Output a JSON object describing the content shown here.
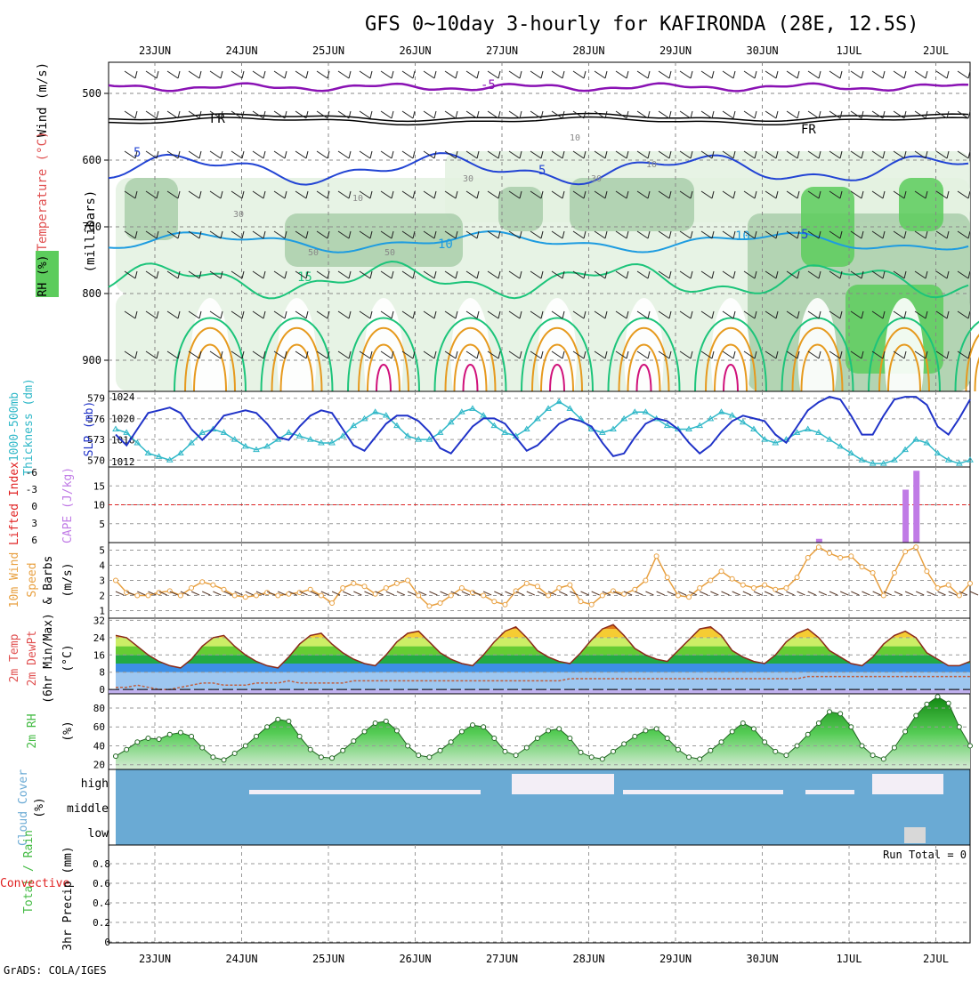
{
  "title": "GFS 0~10day 3-hourly for KAFIRONDA (28E, 12.5S)",
  "credit": "GrADS: COLA/IGES",
  "dates": [
    "23JUN",
    "24JUN",
    "25JUN",
    "26JUN",
    "27JUN",
    "28JUN",
    "29JUN",
    "30JUN",
    "1JUL",
    "2JUL"
  ],
  "colors": {
    "rh_light": "#e3f1e1",
    "rh_mid": "#a9ceaa",
    "rh_dark": "#5ccc5c",
    "temp_purple": "#8a12b4",
    "temp_blue": "#2244d4",
    "temp_cyan": "#1e9ce0",
    "temp_green": "#1cc47a",
    "temp_orange": "#e69a1e",
    "temp_magenta": "#d0107a",
    "thickness": "#30b8c8",
    "slp": "#2033c8",
    "cape": "#c07be6",
    "lifted": "#e02020",
    "wind10": "#e8a040",
    "rh2m": "#44bb44",
    "cloud": "#6aaad4",
    "cloud_clear": "#f3eef6"
  },
  "panels": {
    "upper": {
      "ylabel_wind": "Wind (m/s)",
      "ylabel_temp": "Temperature (°C)",
      "ylabel_rh": "RH (%)",
      "ylabel_mb": "(millibars)",
      "yticks": [
        "500",
        "600",
        "700",
        "800",
        "900"
      ],
      "contour_labels": [
        "-5",
        "FR",
        "FR",
        "5",
        "5",
        "5",
        "10",
        "10",
        "15",
        "10",
        "30",
        "30",
        "30",
        "50",
        "50",
        "10",
        "10"
      ]
    },
    "thickness_slp": {
      "ylabel_left": "1000-500mb",
      "ylabel_left2": "Thickness (dm)",
      "ylabel_right": "SLP (mb)",
      "yticks_left": [
        "579",
        "576",
        "573",
        "570"
      ],
      "yticks_right": [
        "1024",
        "1020",
        "1016",
        "1012"
      ]
    },
    "cape_li": {
      "ylabel_li": "Lifted Index",
      "ylabel_cape": "CAPE (J/kg)",
      "yticks_li": [
        "-6",
        "-3",
        "0",
        "3",
        "6"
      ],
      "yticks_cape": [
        "15",
        "10",
        "5"
      ]
    },
    "wind10m": {
      "ylabel1": "10m Wind",
      "ylabel2": "Speed",
      "ylabel3": "& Barbs",
      "unit": "(m/s)",
      "yticks": [
        "5",
        "4",
        "3",
        "2",
        "1"
      ]
    },
    "temp2m": {
      "ylabel1": "2m Temp",
      "ylabel2": "2m DewPt",
      "ylabel3": "(6hr Min/Max)",
      "unit": "(°C)",
      "yticks": [
        "32",
        "24",
        "16",
        "8",
        "0"
      ]
    },
    "rh2m": {
      "ylabel1": "2m RH",
      "unit": "(%)",
      "yticks": [
        "80",
        "60",
        "40",
        "20"
      ]
    },
    "cloud": {
      "ylabel": "Cloud Cover",
      "unit": "(%)",
      "levels": [
        "high",
        "middle",
        "low"
      ]
    },
    "precip": {
      "ylabel1": "Total / Rain",
      "ylabel2": "Convective",
      "ylabel3": "3hr Precip (mm)",
      "yticks": [
        "0.8",
        "0.6",
        "0.4",
        "0.2",
        "0"
      ],
      "run_total": "Run Total = 0"
    }
  },
  "chart_data": [
    {
      "type": "line",
      "title": "1000-500mb Thickness (dm) / SLP (mb)",
      "x": [
        "22JUN12",
        "22JUN15",
        "22JUN18",
        "22JUN21",
        "23JUN00",
        "23JUN03",
        "23JUN06",
        "23JUN09",
        "23JUN12",
        "23JUN15",
        "23JUN18",
        "23JUN21",
        "24JUN00",
        "24JUN03",
        "24JUN06",
        "24JUN09",
        "24JUN12",
        "24JUN15",
        "24JUN18",
        "24JUN21",
        "25JUN00",
        "25JUN03",
        "25JUN06",
        "25JUN09",
        "25JUN12",
        "25JUN15",
        "25JUN18",
        "25JUN21",
        "26JUN00",
        "26JUN03",
        "26JUN06",
        "26JUN09",
        "26JUN12",
        "26JUN15",
        "26JUN18",
        "26JUN21",
        "27JUN00",
        "27JUN03",
        "27JUN06",
        "27JUN09",
        "27JUN12",
        "27JUN15",
        "27JUN18",
        "27JUN21",
        "28JUN00",
        "28JUN03",
        "28JUN06",
        "28JUN09",
        "28JUN12",
        "28JUN15",
        "28JUN18",
        "28JUN21",
        "29JUN00",
        "29JUN03",
        "29JUN06",
        "29JUN09",
        "29JUN12",
        "29JUN15",
        "29JUN18",
        "29JUN21",
        "30JUN00",
        "30JUN03",
        "30JUN06",
        "30JUN09",
        "30JUN12",
        "30JUN15",
        "30JUN18",
        "30JUN21",
        "1JUL00",
        "1JUL03",
        "1JUL06",
        "1JUL09",
        "1JUL12",
        "1JUL15",
        "1JUL18",
        "1JUL21",
        "2JUL00",
        "2JUL03",
        "2JUL06",
        "2JUL09"
      ],
      "series": [
        {
          "name": "1000-500mb Thickness (dm)",
          "values": [
            574.5,
            574.0,
            572.5,
            571.0,
            570.5,
            570.0,
            571.0,
            572.5,
            574.0,
            574.5,
            574.0,
            573.0,
            572.0,
            571.5,
            572.0,
            573.0,
            574.0,
            573.5,
            573.0,
            572.5,
            572.5,
            573.5,
            575.0,
            576.0,
            577.0,
            576.5,
            575.0,
            573.5,
            573.0,
            573.0,
            574.0,
            575.5,
            577.0,
            577.5,
            576.5,
            575.0,
            574.0,
            573.5,
            574.5,
            576.0,
            577.5,
            578.5,
            577.5,
            576.0,
            574.5,
            574.0,
            574.5,
            576.0,
            577.0,
            577.0,
            576.0,
            575.0,
            574.5,
            574.5,
            575.0,
            576.0,
            577.0,
            576.5,
            575.5,
            574.5,
            573.0,
            572.5,
            573.0,
            574.0,
            574.5,
            574.0,
            573.0,
            572.0,
            571.0,
            570.0,
            569.5,
            569.5,
            570.0,
            571.5,
            573.0,
            572.5,
            571.0,
            570.0,
            569.5,
            570.0
          ]
        },
        {
          "name": "SLP (mb)",
          "values": [
            1017.0,
            1015.0,
            1018.0,
            1021.0,
            1021.5,
            1022.0,
            1021.0,
            1018.0,
            1016.0,
            1018.0,
            1020.5,
            1021.0,
            1021.5,
            1021.0,
            1019.0,
            1016.5,
            1016.0,
            1018.5,
            1020.5,
            1021.5,
            1021.0,
            1018.0,
            1015.0,
            1014.0,
            1016.5,
            1019.0,
            1020.5,
            1020.5,
            1019.5,
            1017.5,
            1014.5,
            1013.5,
            1016.0,
            1018.5,
            1020.0,
            1020.0,
            1019.0,
            1016.5,
            1014.0,
            1015.0,
            1017.0,
            1019.0,
            1020.0,
            1019.5,
            1018.5,
            1015.5,
            1013.0,
            1013.5,
            1016.5,
            1019.0,
            1020.0,
            1019.5,
            1018.0,
            1015.5,
            1013.5,
            1015.0,
            1017.5,
            1019.5,
            1020.5,
            1020.0,
            1019.5,
            1017.0,
            1015.5,
            1018.5,
            1021.5,
            1023.0,
            1024.0,
            1023.5,
            1020.5,
            1017.0,
            1017.0,
            1020.5,
            1023.5,
            1024.0,
            1024.0,
            1022.5,
            1018.5,
            1017.0,
            1020.0,
            1023.5
          ]
        }
      ],
      "ylim_left": [
        569,
        580
      ],
      "ylim_right": [
        1011,
        1025
      ],
      "grid": true
    },
    {
      "type": "bar",
      "title": "CAPE (J/kg) / Lifted Index",
      "bars": [
        {
          "x": "30JUN12",
          "value": 1
        },
        {
          "x": "1JUL12",
          "value": 14
        },
        {
          "x": "1JUL15",
          "value": 19
        }
      ],
      "lifted_index_reference": 0,
      "ylim_cape": [
        0,
        20
      ],
      "ylim_li": [
        -6,
        6
      ]
    },
    {
      "type": "line",
      "title": "10m Wind Speed (m/s)",
      "x": [
        "22JUN12",
        "22JUN15",
        "22JUN18",
        "22JUN21",
        "23JUN00",
        "23JUN03",
        "23JUN06",
        "23JUN09",
        "23JUN12",
        "23JUN15",
        "23JUN18",
        "23JUN21",
        "24JUN00",
        "24JUN03",
        "24JUN06",
        "24JUN09",
        "24JUN12",
        "24JUN15",
        "24JUN18",
        "24JUN21",
        "25JUN00",
        "25JUN03",
        "25JUN06",
        "25JUN09",
        "25JUN12",
        "25JUN15",
        "25JUN18",
        "25JUN21",
        "26JUN00",
        "26JUN03",
        "26JUN06",
        "26JUN09",
        "26JUN12",
        "26JUN15",
        "26JUN18",
        "26JUN21",
        "27JUN00",
        "27JUN03",
        "27JUN06",
        "27JUN09",
        "27JUN12",
        "27JUN15",
        "27JUN18",
        "27JUN21",
        "28JUN00",
        "28JUN03",
        "28JUN06",
        "28JUN09",
        "28JUN12",
        "28JUN15",
        "28JUN18",
        "28JUN21",
        "29JUN00",
        "29JUN03",
        "29JUN06",
        "29JUN09",
        "29JUN12",
        "29JUN15",
        "29JUN18",
        "29JUN21",
        "30JUN00",
        "30JUN03",
        "30JUN06",
        "30JUN09",
        "30JUN12",
        "30JUN15",
        "30JUN18",
        "30JUN21",
        "1JUL00",
        "1JUL03",
        "1JUL06",
        "1JUL09",
        "1JUL12",
        "1JUL15",
        "1JUL18",
        "1JUL21",
        "2JUL00",
        "2JUL03",
        "2JUL06",
        "2JUL09"
      ],
      "series": [
        {
          "name": "10m Wind Speed",
          "values": [
            3.0,
            2.2,
            2.0,
            2.0,
            2.2,
            2.3,
            2.0,
            2.5,
            2.9,
            2.7,
            2.4,
            2.0,
            1.9,
            2.0,
            2.2,
            2.0,
            2.1,
            2.2,
            2.4,
            2.0,
            1.5,
            2.5,
            2.8,
            2.6,
            2.1,
            2.5,
            2.8,
            3.0,
            2.0,
            1.3,
            1.5,
            2.0,
            2.5,
            2.2,
            2.0,
            1.6,
            1.4,
            2.3,
            2.8,
            2.6,
            2.0,
            2.5,
            2.7,
            1.6,
            1.4,
            2.0,
            2.3,
            2.1,
            2.4,
            3.0,
            4.6,
            3.2,
            2.0,
            1.9,
            2.5,
            3.0,
            3.6,
            3.1,
            2.7,
            2.5,
            2.7,
            2.4,
            2.5,
            3.2,
            4.5,
            5.2,
            4.8,
            4.5,
            4.6,
            3.9,
            3.5,
            2.0,
            3.5,
            4.9,
            5.2,
            3.6,
            2.5,
            2.7,
            2.0,
            2.8
          ]
        }
      ],
      "ylim": [
        0.5,
        5.5
      ],
      "grid": true
    },
    {
      "type": "area",
      "title": "2m Temp / 2m DewPt (6hr Min/Max) (°C)",
      "x": [
        "22JUN12",
        "22JUN15",
        "22JUN18",
        "22JUN21",
        "23JUN00",
        "23JUN03",
        "23JUN06",
        "23JUN09",
        "23JUN12",
        "23JUN15",
        "23JUN18",
        "23JUN21",
        "24JUN00",
        "24JUN03",
        "24JUN06",
        "24JUN09",
        "24JUN12",
        "24JUN15",
        "24JUN18",
        "24JUN21",
        "25JUN00",
        "25JUN03",
        "25JUN06",
        "25JUN09",
        "25JUN12",
        "25JUN15",
        "25JUN18",
        "25JUN21",
        "26JUN00",
        "26JUN03",
        "26JUN06",
        "26JUN09",
        "26JUN12",
        "26JUN15",
        "26JUN18",
        "26JUN21",
        "27JUN00",
        "27JUN03",
        "27JUN06",
        "27JUN09",
        "27JUN12",
        "27JUN15",
        "27JUN18",
        "27JUN21",
        "28JUN00",
        "28JUN03",
        "28JUN06",
        "28JUN09",
        "28JUN12",
        "28JUN15",
        "28JUN18",
        "28JUN21",
        "29JUN00",
        "29JUN03",
        "29JUN06",
        "29JUN09",
        "29JUN12",
        "29JUN15",
        "29JUN18",
        "29JUN21",
        "30JUN00",
        "30JUN03",
        "30JUN06",
        "30JUN09",
        "30JUN12",
        "30JUN15",
        "30JUN18",
        "30JUN21",
        "1JUL00",
        "1JUL03",
        "1JUL06",
        "1JUL09",
        "1JUL12",
        "1JUL15",
        "1JUL18",
        "1JUL21",
        "2JUL00",
        "2JUL03",
        "2JUL06",
        "2JUL09"
      ],
      "series": [
        {
          "name": "2m Temp",
          "values": [
            25,
            24,
            20,
            16,
            13,
            11,
            10,
            14,
            20,
            24,
            25,
            20,
            16,
            13,
            11,
            10,
            15,
            21,
            25,
            26,
            21,
            17,
            14,
            12,
            11,
            16,
            22,
            26,
            27,
            22,
            17,
            14,
            12,
            11,
            16,
            22,
            27,
            29,
            24,
            18,
            15,
            13,
            12,
            17,
            23,
            28,
            30,
            25,
            19,
            16,
            14,
            13,
            18,
            23,
            28,
            29,
            25,
            18,
            15,
            13,
            12,
            16,
            22,
            26,
            28,
            24,
            18,
            15,
            12,
            11,
            15,
            21,
            25,
            27,
            24,
            17,
            14,
            11,
            11,
            13
          ]
        },
        {
          "name": "2m DewPt",
          "values": [
            1,
            1,
            2,
            1,
            0,
            0,
            1,
            2,
            3,
            3,
            2,
            2,
            2,
            3,
            3,
            3,
            4,
            3,
            3,
            3,
            3,
            3,
            4,
            4,
            4,
            4,
            4,
            4,
            4,
            4,
            4,
            4,
            4,
            4,
            4,
            4,
            4,
            4,
            4,
            4,
            4,
            4,
            5,
            5,
            5,
            5,
            5,
            5,
            5,
            5,
            5,
            5,
            5,
            5,
            5,
            5,
            5,
            5,
            5,
            5,
            5,
            5,
            5,
            5,
            6,
            6,
            6,
            6,
            6,
            6,
            6,
            6,
            6,
            6,
            6,
            6,
            6,
            6,
            6,
            6
          ]
        }
      ],
      "ylim": [
        -2,
        33
      ],
      "grid": true
    },
    {
      "type": "area",
      "title": "2m RH (%)",
      "x": [
        "22JUN12",
        "22JUN15",
        "22JUN18",
        "22JUN21",
        "23JUN00",
        "23JUN03",
        "23JUN06",
        "23JUN09",
        "23JUN12",
        "23JUN15",
        "23JUN18",
        "23JUN21",
        "24JUN00",
        "24JUN03",
        "24JUN06",
        "24JUN09",
        "24JUN12",
        "24JUN15",
        "24JUN18",
        "24JUN21",
        "25JUN00",
        "25JUN03",
        "25JUN06",
        "25JUN09",
        "25JUN12",
        "25JUN15",
        "25JUN18",
        "25JUN21",
        "26JUN00",
        "26JUN03",
        "26JUN06",
        "26JUN09",
        "26JUN12",
        "26JUN15",
        "26JUN18",
        "26JUN21",
        "27JUN00",
        "27JUN03",
        "27JUN06",
        "27JUN09",
        "27JUN12",
        "27JUN15",
        "27JUN18",
        "27JUN21",
        "28JUN00",
        "28JUN03",
        "28JUN06",
        "28JUN09",
        "28JUN12",
        "28JUN15",
        "28JUN18",
        "28JUN21",
        "29JUN00",
        "29JUN03",
        "29JUN06",
        "29JUN09",
        "29JUN12",
        "29JUN15",
        "29JUN18",
        "29JUN21",
        "30JUN00",
        "30JUN03",
        "30JUN06",
        "30JUN09",
        "30JUN12",
        "30JUN15",
        "30JUN18",
        "30JUN21",
        "1JUL00",
        "1JUL03",
        "1JUL06",
        "1JUL09",
        "1JUL12",
        "1JUL15",
        "1JUL18",
        "1JUL21",
        "2JUL00",
        "2JUL03",
        "2JUL06",
        "2JUL09"
      ],
      "series": [
        {
          "name": "2m RH",
          "values": [
            29,
            36,
            44,
            48,
            47,
            52,
            54,
            50,
            38,
            28,
            25,
            32,
            40,
            50,
            60,
            68,
            66,
            50,
            36,
            28,
            27,
            35,
            45,
            55,
            64,
            66,
            56,
            40,
            30,
            28,
            35,
            44,
            55,
            62,
            60,
            48,
            34,
            30,
            38,
            48,
            56,
            58,
            48,
            33,
            28,
            26,
            34,
            42,
            50,
            56,
            58,
            48,
            36,
            28,
            26,
            35,
            44,
            55,
            64,
            58,
            44,
            34,
            30,
            40,
            52,
            64,
            76,
            74,
            60,
            40,
            30,
            26,
            38,
            55,
            72,
            84,
            92,
            85,
            60,
            40
          ]
        }
      ],
      "ylim": [
        15,
        95
      ],
      "grid": true
    },
    {
      "type": "heatmap",
      "title": "Cloud Cover (%)",
      "levels": [
        "high",
        "middle",
        "low"
      ],
      "note": "high cloud varies 0-100%, middle and low mostly 100% covered (blue)"
    },
    {
      "type": "bar",
      "title": "3hr Precip (mm)",
      "values": [],
      "ylim": [
        0,
        1
      ],
      "run_total": "Run Total = 0"
    }
  ]
}
